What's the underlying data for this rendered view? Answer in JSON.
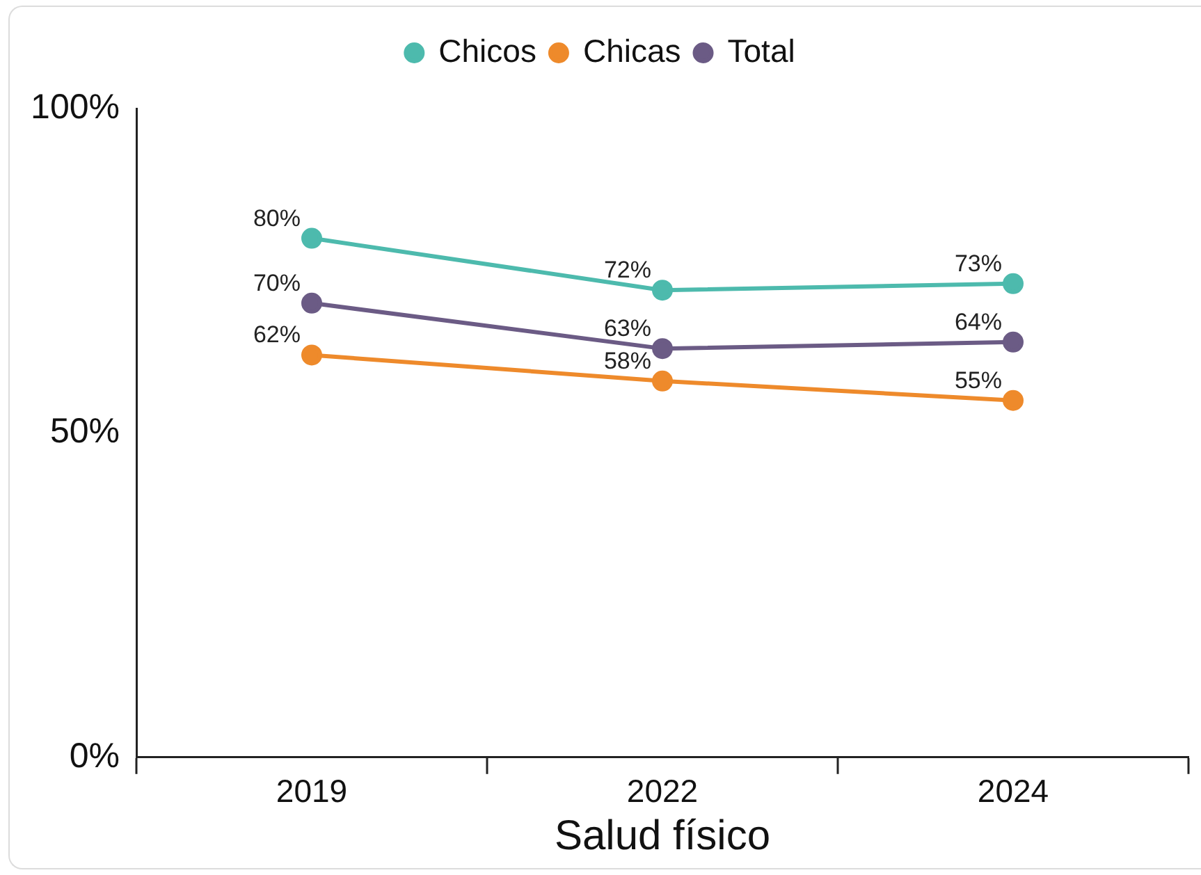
{
  "chart_data": {
    "type": "line",
    "categories": [
      "2019",
      "2022",
      "2024"
    ],
    "series": [
      {
        "name": "Chicos",
        "color": "#4dbaad",
        "values": [
          80,
          72,
          73
        ],
        "value_labels": [
          "80%",
          "72%",
          "73%"
        ]
      },
      {
        "name": "Chicas",
        "color": "#ee8a2b",
        "values": [
          62,
          58,
          55
        ],
        "value_labels": [
          "62%",
          "58%",
          "55%"
        ]
      },
      {
        "name": "Total",
        "color": "#6b5b85",
        "values": [
          70,
          63,
          64
        ],
        "value_labels": [
          "70%",
          "63%",
          "64%"
        ]
      }
    ],
    "ylim": [
      0,
      100
    ],
    "yticks": [
      {
        "value": 0,
        "label": "0%"
      },
      {
        "value": 50,
        "label": "50%"
      },
      {
        "value": 100,
        "label": "100%"
      }
    ],
    "xlabel": "Salud físico",
    "legend": "top",
    "marker": "circle",
    "grid": false
  }
}
